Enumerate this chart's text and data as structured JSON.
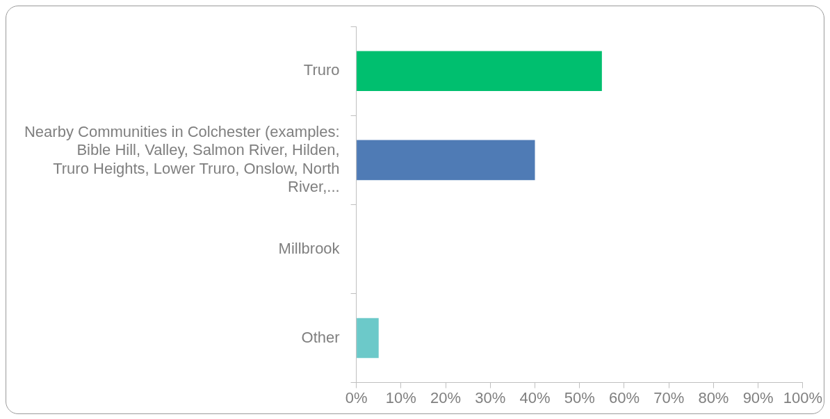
{
  "chart_data": {
    "type": "bar",
    "orientation": "horizontal",
    "categories": [
      "Truro",
      "Nearby Communities in Colchester (examples: Bible Hill, Valley, Salmon River, Hilden, Truro Heights, Lower Truro, Onslow, North River,...",
      "Millbrook",
      "Other"
    ],
    "values": [
      55,
      40,
      0,
      5
    ],
    "colors": [
      "#00bf6f",
      "#4f7bb5",
      "#4f7bb5",
      "#6cc9c9"
    ],
    "xlim": [
      0,
      100
    ],
    "xticks": [
      {
        "value": 0,
        "label": "0%"
      },
      {
        "value": 10,
        "label": "10%"
      },
      {
        "value": 20,
        "label": "20%"
      },
      {
        "value": 30,
        "label": "30%"
      },
      {
        "value": 40,
        "label": "40%"
      },
      {
        "value": 50,
        "label": "50%"
      },
      {
        "value": 60,
        "label": "60%"
      },
      {
        "value": 70,
        "label": "70%"
      },
      {
        "value": 80,
        "label": "80%"
      },
      {
        "value": 90,
        "label": "90%"
      },
      {
        "value": 100,
        "label": "100%"
      }
    ],
    "grid": false,
    "legend": false
  }
}
